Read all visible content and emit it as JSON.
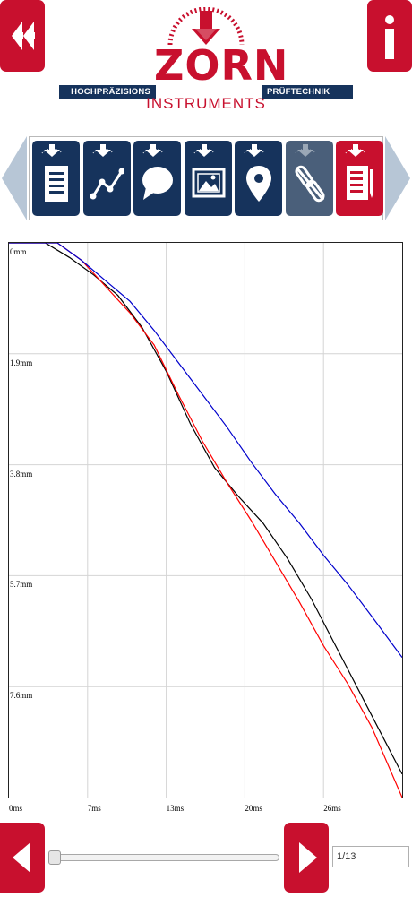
{
  "header": {
    "back_icon": "rewind-icon",
    "info_icon": "info-icon",
    "logo": {
      "left_tagline": "HOCHPRÄZISIONS",
      "right_tagline": "PRÜFTECHNIK",
      "brand": "ZORN",
      "subbrand": "INSTRUMENTS"
    }
  },
  "colors": {
    "navy": "#16335c",
    "red": "#c8102e",
    "grey_arrow": "#b7c6d6"
  },
  "toolbar": {
    "tiles": [
      {
        "name": "list",
        "icon": "list-document-icon"
      },
      {
        "name": "chart",
        "icon": "line-chart-icon"
      },
      {
        "name": "comment",
        "icon": "speech-bubble-icon"
      },
      {
        "name": "image",
        "icon": "image-icon"
      },
      {
        "name": "location",
        "icon": "map-pin-icon"
      },
      {
        "name": "unlink",
        "icon": "broken-link-icon"
      },
      {
        "name": "report",
        "icon": "edit-document-icon"
      }
    ]
  },
  "chart_data": {
    "type": "line",
    "xlim": [
      0,
      32.5
    ],
    "ylim": [
      0,
      9.5
    ],
    "y_inverted": true,
    "grid": true,
    "x_ticks": [
      "0ms",
      "7ms",
      "13ms",
      "20ms",
      "26ms"
    ],
    "x_tick_values": [
      0,
      6.5,
      13,
      19.5,
      26
    ],
    "y_ticks": [
      "0mm",
      "1.9mm",
      "3.8mm",
      "5.7mm",
      "7.6mm"
    ],
    "y_tick_values": [
      0,
      1.9,
      3.8,
      5.7,
      7.6
    ],
    "series": [
      {
        "color": "#000000",
        "x": [
          0,
          3,
          5,
          7,
          9,
          11,
          13,
          15,
          17,
          19,
          21,
          23,
          25,
          27,
          29,
          31,
          32.5
        ],
        "y": [
          0,
          0,
          0.25,
          0.55,
          0.9,
          1.45,
          2.2,
          3.1,
          3.85,
          4.35,
          4.8,
          5.4,
          6.1,
          6.9,
          7.7,
          8.5,
          9.1
        ]
      },
      {
        "color": "#ff0000",
        "x": [
          0,
          4,
          6,
          8,
          10,
          12,
          14,
          16,
          18,
          20,
          22,
          24,
          26,
          28,
          30,
          32.5
        ],
        "y": [
          0,
          0,
          0.3,
          0.75,
          1.2,
          1.75,
          2.6,
          3.4,
          4.1,
          4.75,
          5.45,
          6.15,
          6.9,
          7.55,
          8.3,
          9.5
        ]
      },
      {
        "color": "#0000cc",
        "x": [
          0,
          4,
          6,
          8,
          10,
          12,
          14,
          16,
          18,
          20,
          22,
          24,
          26,
          28,
          30,
          32.5
        ],
        "y": [
          0,
          0,
          0.3,
          0.65,
          1.0,
          1.5,
          2.05,
          2.6,
          3.15,
          3.75,
          4.3,
          4.8,
          5.35,
          5.85,
          6.4,
          7.1
        ]
      }
    ]
  },
  "footer": {
    "prev_icon": "chevron-left-icon",
    "next_icon": "chevron-right-icon",
    "slider_value": 0.0,
    "page_field": "1/13"
  }
}
